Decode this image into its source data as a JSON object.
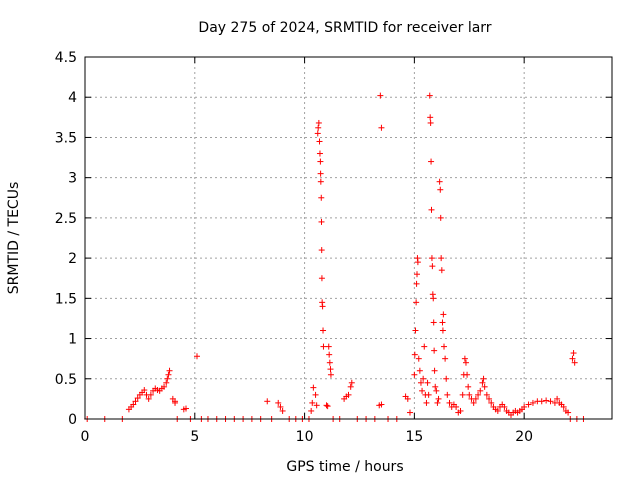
{
  "chart_data": {
    "type": "scatter",
    "title": "Day 275 of 2024, SRMTID for receiver larr",
    "xlabel": "GPS time / hours",
    "ylabel": "SRMTID / TECUs",
    "xlim": [
      0,
      24
    ],
    "ylim": [
      0,
      4.5
    ],
    "grid": true,
    "marker": "+",
    "color": "#ff0000",
    "x_ticks": [
      0,
      5,
      10,
      15,
      20
    ],
    "x_tick_labels": [
      "0",
      "5",
      "10",
      "15",
      "20"
    ],
    "y_ticks": [
      0,
      0.5,
      1,
      1.5,
      2,
      2.5,
      3,
      3.5,
      4,
      4.5
    ],
    "y_tick_labels": [
      "0",
      "0.5",
      "1",
      "1.5",
      "2",
      "2.5",
      "3",
      "3.5",
      "4",
      "4.5"
    ],
    "series": [
      {
        "name": "SRMTID",
        "points": [
          [
            0.1,
            0
          ],
          [
            0.9,
            0
          ],
          [
            1.7,
            0
          ],
          [
            2.0,
            0.12
          ],
          [
            2.1,
            0.15
          ],
          [
            2.2,
            0.18
          ],
          [
            2.3,
            0.22
          ],
          [
            2.4,
            0.26
          ],
          [
            2.5,
            0.3
          ],
          [
            2.6,
            0.33
          ],
          [
            2.7,
            0.36
          ],
          [
            2.8,
            0.3
          ],
          [
            2.9,
            0.25
          ],
          [
            3.0,
            0.3
          ],
          [
            3.1,
            0.35
          ],
          [
            3.2,
            0.38
          ],
          [
            3.3,
            0.36
          ],
          [
            3.4,
            0.35
          ],
          [
            3.5,
            0.38
          ],
          [
            3.6,
            0.4
          ],
          [
            3.7,
            0.45
          ],
          [
            3.75,
            0.5
          ],
          [
            3.8,
            0.55
          ],
          [
            3.85,
            0.6
          ],
          [
            4.0,
            0.25
          ],
          [
            4.1,
            0.22
          ],
          [
            4.1,
            0.2
          ],
          [
            4.2,
            0
          ],
          [
            4.5,
            0.12
          ],
          [
            4.6,
            0.13
          ],
          [
            4.8,
            0
          ],
          [
            5.1,
            0.78
          ],
          [
            5.3,
            0
          ],
          [
            5.6,
            0
          ],
          [
            6.0,
            0
          ],
          [
            6.4,
            0
          ],
          [
            6.8,
            0
          ],
          [
            7.2,
            0
          ],
          [
            7.6,
            0
          ],
          [
            8.0,
            0
          ],
          [
            8.3,
            0.22
          ],
          [
            8.5,
            0
          ],
          [
            8.8,
            0.2
          ],
          [
            8.9,
            0.15
          ],
          [
            9.0,
            0.1
          ],
          [
            9.3,
            0
          ],
          [
            9.6,
            0
          ],
          [
            9.9,
            0
          ],
          [
            10.2,
            0
          ],
          [
            10.3,
            0.1
          ],
          [
            10.35,
            0.2
          ],
          [
            10.4,
            0.39
          ],
          [
            10.5,
            0.3
          ],
          [
            10.55,
            0.17
          ],
          [
            10.6,
            3.55
          ],
          [
            10.62,
            3.62
          ],
          [
            10.65,
            3.68
          ],
          [
            10.68,
            3.45
          ],
          [
            10.7,
            3.3
          ],
          [
            10.72,
            3.2
          ],
          [
            10.73,
            3.05
          ],
          [
            10.74,
            2.95
          ],
          [
            10.76,
            2.75
          ],
          [
            10.77,
            2.45
          ],
          [
            10.78,
            2.1
          ],
          [
            10.79,
            1.75
          ],
          [
            10.8,
            1.45
          ],
          [
            10.82,
            1.4
          ],
          [
            10.84,
            1.1
          ],
          [
            10.86,
            0.9
          ],
          [
            11.0,
            0.17
          ],
          [
            11.05,
            0.16
          ],
          [
            11.1,
            0.9
          ],
          [
            11.12,
            0.8
          ],
          [
            11.15,
            0.7
          ],
          [
            11.18,
            0.62
          ],
          [
            11.2,
            0.55
          ],
          [
            11.3,
            0
          ],
          [
            11.6,
            0
          ],
          [
            11.8,
            0.25
          ],
          [
            11.9,
            0.28
          ],
          [
            12.0,
            0.3
          ],
          [
            12.1,
            0.4
          ],
          [
            12.15,
            0.45
          ],
          [
            12.4,
            0
          ],
          [
            12.8,
            0
          ],
          [
            13.2,
            0
          ],
          [
            13.4,
            0.17
          ],
          [
            13.45,
            4.02
          ],
          [
            13.5,
            3.62
          ],
          [
            13.5,
            0.18
          ],
          [
            13.8,
            0
          ],
          [
            14.2,
            0
          ],
          [
            14.6,
            0.28
          ],
          [
            14.7,
            0.25
          ],
          [
            14.8,
            0.08
          ],
          [
            15.0,
            0.55
          ],
          [
            15.02,
            0.8
          ],
          [
            15.05,
            1.1
          ],
          [
            15.08,
            1.45
          ],
          [
            15.1,
            1.68
          ],
          [
            15.12,
            1.8
          ],
          [
            15.14,
            2.0
          ],
          [
            15.16,
            1.95
          ],
          [
            15.2,
            0.75
          ],
          [
            15.25,
            0.6
          ],
          [
            15.3,
            0.45
          ],
          [
            15.35,
            0.35
          ],
          [
            15.4,
            0.5
          ],
          [
            15.45,
            0.9
          ],
          [
            15.5,
            0.3
          ],
          [
            15.55,
            0.2
          ],
          [
            15.6,
            0.45
          ],
          [
            15.65,
            0.3
          ],
          [
            15.7,
            4.02
          ],
          [
            15.72,
            3.75
          ],
          [
            15.74,
            3.68
          ],
          [
            15.76,
            3.2
          ],
          [
            15.78,
            2.6
          ],
          [
            15.8,
            2.0
          ],
          [
            15.82,
            1.9
          ],
          [
            15.84,
            1.55
          ],
          [
            15.86,
            1.5
          ],
          [
            15.88,
            1.2
          ],
          [
            15.9,
            0.85
          ],
          [
            15.92,
            0.6
          ],
          [
            15.95,
            0.4
          ],
          [
            16.0,
            0.35
          ],
          [
            16.05,
            0.2
          ],
          [
            16.1,
            0.25
          ],
          [
            16.15,
            2.95
          ],
          [
            16.18,
            2.85
          ],
          [
            16.2,
            2.5
          ],
          [
            16.22,
            2.0
          ],
          [
            16.25,
            1.85
          ],
          [
            16.28,
            1.2
          ],
          [
            16.3,
            1.1
          ],
          [
            16.32,
            1.3
          ],
          [
            16.35,
            0.9
          ],
          [
            16.4,
            0.75
          ],
          [
            16.45,
            0.5
          ],
          [
            16.5,
            0.3
          ],
          [
            16.6,
            0.2
          ],
          [
            16.7,
            0.15
          ],
          [
            16.8,
            0.18
          ],
          [
            16.9,
            0.15
          ],
          [
            17.0,
            0.08
          ],
          [
            17.1,
            0.1
          ],
          [
            17.2,
            0.3
          ],
          [
            17.25,
            0.55
          ],
          [
            17.3,
            0.75
          ],
          [
            17.35,
            0.7
          ],
          [
            17.4,
            0.55
          ],
          [
            17.45,
            0.4
          ],
          [
            17.5,
            0.3
          ],
          [
            17.6,
            0.25
          ],
          [
            17.7,
            0.2
          ],
          [
            17.8,
            0.25
          ],
          [
            17.9,
            0.3
          ],
          [
            18.0,
            0.35
          ],
          [
            18.1,
            0.45
          ],
          [
            18.15,
            0.5
          ],
          [
            18.2,
            0.4
          ],
          [
            18.3,
            0.3
          ],
          [
            18.4,
            0.25
          ],
          [
            18.5,
            0.2
          ],
          [
            18.6,
            0.15
          ],
          [
            18.7,
            0.12
          ],
          [
            18.8,
            0.1
          ],
          [
            18.9,
            0.15
          ],
          [
            19.0,
            0.18
          ],
          [
            19.1,
            0.15
          ],
          [
            19.2,
            0.1
          ],
          [
            19.3,
            0.08
          ],
          [
            19.4,
            0.05
          ],
          [
            19.5,
            0.08
          ],
          [
            19.6,
            0.1
          ],
          [
            19.7,
            0.08
          ],
          [
            19.8,
            0.1
          ],
          [
            19.9,
            0.12
          ],
          [
            20.0,
            0.15
          ],
          [
            20.2,
            0.18
          ],
          [
            20.4,
            0.2
          ],
          [
            20.6,
            0.22
          ],
          [
            20.8,
            0.22
          ],
          [
            21.0,
            0.23
          ],
          [
            21.2,
            0.22
          ],
          [
            21.4,
            0.2
          ],
          [
            21.5,
            0.25
          ],
          [
            21.6,
            0.2
          ],
          [
            21.7,
            0.18
          ],
          [
            21.8,
            0.15
          ],
          [
            21.9,
            0.1
          ],
          [
            22.0,
            0.08
          ],
          [
            22.1,
            0
          ],
          [
            22.2,
            0.75
          ],
          [
            22.25,
            0.82
          ],
          [
            22.3,
            0.7
          ],
          [
            22.4,
            0
          ],
          [
            22.7,
            0
          ]
        ]
      }
    ]
  }
}
